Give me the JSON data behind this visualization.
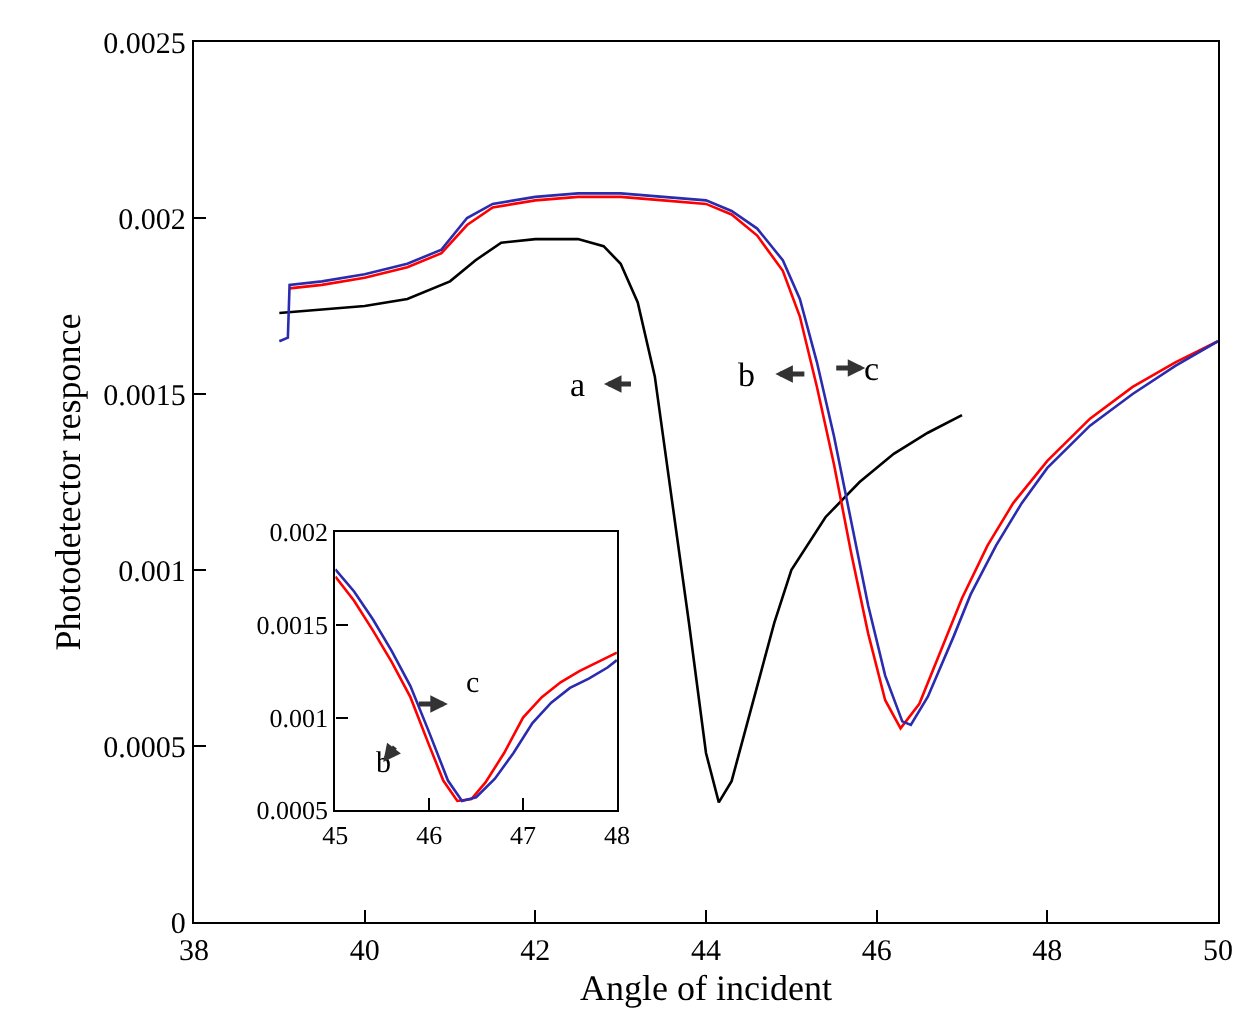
{
  "chart_data": [
    {
      "type": "line",
      "xlabel": "Angle of incident",
      "ylabel": "Photodetector responce",
      "xlim": [
        38,
        50
      ],
      "ylim": [
        0,
        0.0025
      ],
      "xticks": [
        38,
        40,
        42,
        44,
        46,
        48,
        50
      ],
      "yticks": [
        0,
        0.0005,
        0.001,
        0.0015,
        0.002,
        0.0025
      ],
      "grid": false,
      "marker": "none",
      "line_style": "solid",
      "series": [
        {
          "color": "#000000",
          "x": [
            39,
            39.5,
            40,
            40.5,
            41,
            41.3,
            41.6,
            42,
            42.5,
            42.8,
            43,
            43.2,
            43.4,
            43.6,
            43.8,
            44,
            44.15,
            44.3,
            44.5,
            44.8,
            45,
            45.4,
            45.8,
            46.2,
            46.6,
            47
          ],
          "values": [
            0.00173,
            0.00174,
            0.00175,
            0.00177,
            0.00182,
            0.00188,
            0.00193,
            0.00194,
            0.00194,
            0.00192,
            0.00187,
            0.00176,
            0.00155,
            0.0012,
            0.00085,
            0.00048,
            0.00034,
            0.0004,
            0.00058,
            0.00085,
            0.001,
            0.00115,
            0.00125,
            0.00133,
            0.00139,
            0.00144
          ]
        },
        {
          "color": "#ff0000",
          "x": [
            39.12,
            39.5,
            40,
            40.5,
            40.9,
            41.2,
            41.5,
            42,
            42.5,
            43,
            43.5,
            44,
            44.3,
            44.6,
            44.9,
            45.1,
            45.3,
            45.5,
            45.7,
            45.9,
            46.1,
            46.28,
            46.5,
            46.8,
            47,
            47.3,
            47.6,
            48,
            48.5,
            49,
            49.5,
            50
          ],
          "values": [
            0.0018,
            0.00181,
            0.00183,
            0.00186,
            0.0019,
            0.00198,
            0.00203,
            0.00205,
            0.00206,
            0.00206,
            0.00205,
            0.00204,
            0.00201,
            0.00195,
            0.00185,
            0.00172,
            0.00152,
            0.0013,
            0.00105,
            0.00082,
            0.00063,
            0.00055,
            0.00062,
            0.0008,
            0.00092,
            0.00107,
            0.00119,
            0.00131,
            0.00143,
            0.00152,
            0.00159,
            0.00165
          ]
        },
        {
          "color": "#2b2bb0",
          "x": [
            39,
            39.1,
            39.12,
            39.5,
            40,
            40.5,
            40.9,
            41.2,
            41.5,
            42,
            42.5,
            43,
            43.5,
            44,
            44.3,
            44.6,
            44.9,
            45.1,
            45.3,
            45.5,
            45.7,
            45.9,
            46.1,
            46.3,
            46.4,
            46.6,
            46.9,
            47.1,
            47.4,
            47.7,
            48,
            48.5,
            49,
            49.5,
            50
          ],
          "values": [
            0.00165,
            0.00166,
            0.00181,
            0.00182,
            0.00184,
            0.00187,
            0.00191,
            0.002,
            0.00204,
            0.00206,
            0.00207,
            0.00207,
            0.00206,
            0.00205,
            0.00202,
            0.00197,
            0.00188,
            0.00177,
            0.00159,
            0.00138,
            0.00114,
            0.0009,
            0.0007,
            0.00057,
            0.00056,
            0.00064,
            0.00081,
            0.00093,
            0.00107,
            0.00119,
            0.00129,
            0.00141,
            0.0015,
            0.00158,
            0.00165
          ]
        }
      ],
      "annotations": [
        "a",
        "b",
        "c"
      ]
    },
    {
      "type": "line",
      "xlim": [
        45,
        48
      ],
      "ylim": [
        0.0005,
        0.002
      ],
      "xticks": [
        45,
        46,
        47,
        48
      ],
      "yticks": [
        0.0005,
        0.001,
        0.0015,
        0.002
      ],
      "grid": false,
      "marker": "none",
      "line_style": "solid",
      "series": [
        {
          "color": "#ff0000",
          "x": [
            45,
            45.2,
            45.4,
            45.6,
            45.8,
            46,
            46.15,
            46.3,
            46.45,
            46.6,
            46.8,
            47,
            47.2,
            47.4,
            47.6,
            47.8,
            48
          ],
          "values": [
            0.00176,
            0.00163,
            0.00147,
            0.0013,
            0.00111,
            0.00085,
            0.00066,
            0.00055,
            0.00056,
            0.00065,
            0.00081,
            0.001,
            0.00111,
            0.00119,
            0.00125,
            0.0013,
            0.00135
          ]
        },
        {
          "color": "#2b2bb0",
          "x": [
            45,
            45.2,
            45.4,
            45.6,
            45.8,
            46,
            46.2,
            46.35,
            46.5,
            46.7,
            46.9,
            47.1,
            47.3,
            47.5,
            47.7,
            47.9,
            48
          ],
          "values": [
            0.0018,
            0.00168,
            0.00153,
            0.00136,
            0.00117,
            0.00092,
            0.00066,
            0.00055,
            0.00057,
            0.00067,
            0.00081,
            0.00097,
            0.00108,
            0.00116,
            0.00121,
            0.00127,
            0.00131
          ]
        }
      ],
      "annotations": [
        "c",
        "b"
      ]
    }
  ]
}
